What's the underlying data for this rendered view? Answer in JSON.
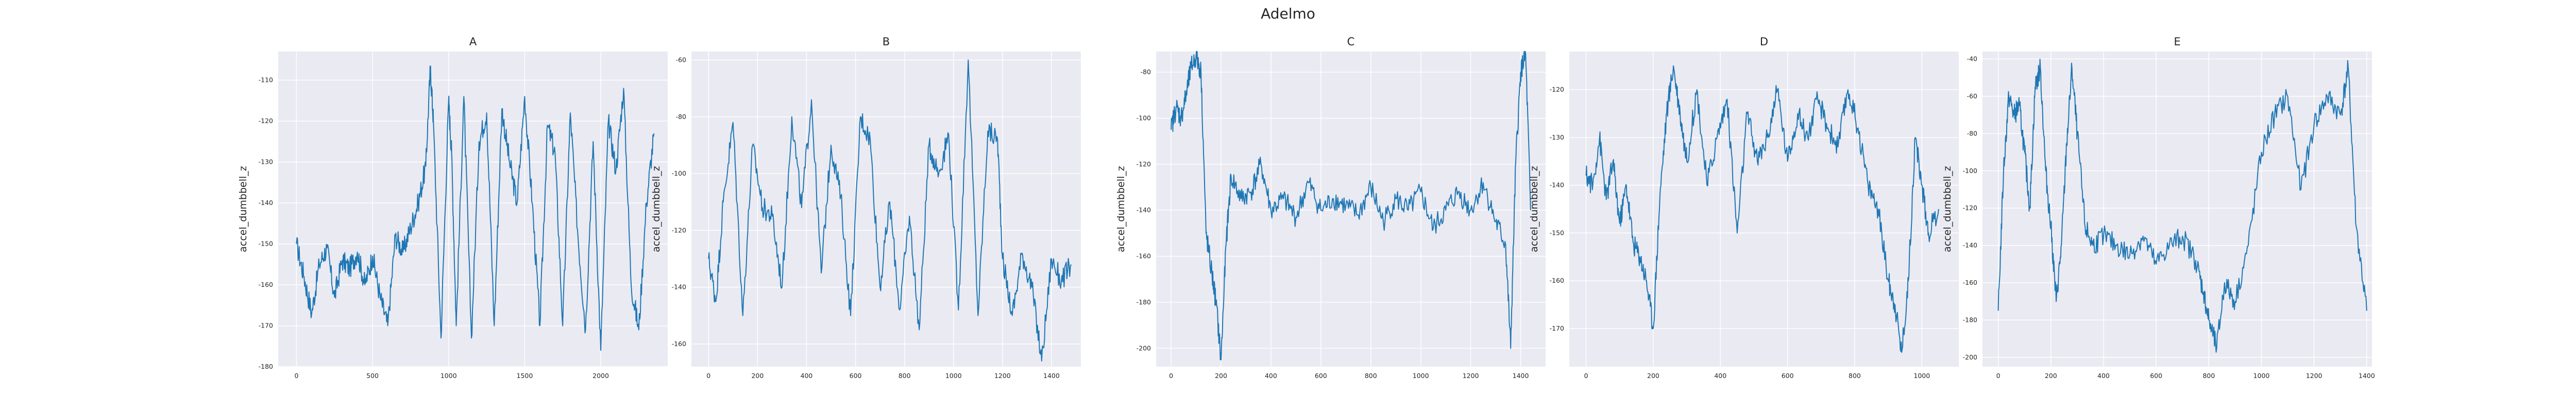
{
  "figure_title": "Adelmo",
  "colors": {
    "line": "#1f77b4",
    "panel_bg": "#eaeaf2",
    "grid": "#ffffff"
  },
  "chart_data": [
    {
      "type": "line",
      "title": "A",
      "ylabel": "accel_dumbbell_z",
      "xlabel": "",
      "grid": true,
      "xlim": [
        -120,
        2440
      ],
      "ylim": [
        -180,
        -103
      ],
      "xticks": [
        0,
        500,
        1000,
        1500,
        2000
      ],
      "yticks": [
        -180,
        -170,
        -160,
        -150,
        -140,
        -130,
        -120,
        -110
      ],
      "x": [
        0,
        50,
        100,
        150,
        200,
        250,
        300,
        350,
        400,
        450,
        500,
        550,
        600,
        650,
        700,
        750,
        800,
        850,
        880,
        900,
        950,
        1000,
        1020,
        1050,
        1100,
        1150,
        1200,
        1250,
        1300,
        1350,
        1400,
        1450,
        1500,
        1550,
        1600,
        1650,
        1700,
        1750,
        1800,
        1850,
        1900,
        1950,
        2000,
        2050,
        2100,
        2150,
        2200,
        2250,
        2300,
        2350
      ],
      "y": [
        -150,
        -158,
        -167,
        -155,
        -151,
        -163,
        -154,
        -156,
        -152,
        -160,
        -153,
        -163,
        -170,
        -148,
        -152,
        -146,
        -140,
        -131,
        -107,
        -120,
        -173,
        -115,
        -128,
        -170,
        -114,
        -173,
        -125,
        -118,
        -170,
        -117,
        -130,
        -140,
        -114,
        -140,
        -170,
        -121,
        -128,
        -170,
        -118,
        -148,
        -171,
        -125,
        -176,
        -120,
        -132,
        -112,
        -160,
        -171,
        -140,
        -123
      ]
    },
    {
      "type": "line",
      "title": "B",
      "ylabel": "accel_dumbbell_z",
      "xlabel": "",
      "grid": true,
      "xlim": [
        -70,
        1520
      ],
      "ylim": [
        -168,
        -57
      ],
      "xticks": [
        0,
        200,
        400,
        600,
        800,
        1000,
        1200,
        1400
      ],
      "yticks": [
        -160,
        -140,
        -120,
        -100,
        -80,
        -60
      ],
      "x": [
        0,
        30,
        60,
        100,
        140,
        180,
        220,
        260,
        300,
        340,
        380,
        420,
        460,
        500,
        540,
        580,
        620,
        660,
        700,
        740,
        780,
        820,
        860,
        900,
        940,
        980,
        1020,
        1060,
        1100,
        1140,
        1180,
        1200,
        1240,
        1280,
        1320,
        1360,
        1400,
        1440,
        1480
      ],
      "y": [
        -130,
        -145,
        -110,
        -82,
        -150,
        -90,
        -112,
        -115,
        -140,
        -80,
        -112,
        -74,
        -135,
        -90,
        -108,
        -150,
        -80,
        -88,
        -140,
        -110,
        -148,
        -115,
        -155,
        -90,
        -100,
        -86,
        -148,
        -60,
        -150,
        -85,
        -88,
        -130,
        -150,
        -128,
        -140,
        -166,
        -130,
        -138,
        -132
      ]
    },
    {
      "type": "line",
      "title": "C",
      "ylabel": "accel_dumbbell_z",
      "xlabel": "",
      "grid": true,
      "xlim": [
        -60,
        1500
      ],
      "ylim": [
        -208,
        -71
      ],
      "xticks": [
        0,
        200,
        400,
        600,
        800,
        1000,
        1200,
        1400
      ],
      "yticks": [
        -200,
        -180,
        -160,
        -140,
        -120,
        -100,
        -80
      ],
      "x": [
        0,
        20,
        40,
        60,
        80,
        100,
        120,
        140,
        160,
        180,
        200,
        220,
        240,
        280,
        320,
        360,
        400,
        450,
        500,
        550,
        600,
        650,
        700,
        750,
        800,
        850,
        900,
        950,
        1000,
        1050,
        1100,
        1150,
        1200,
        1250,
        1300,
        1340,
        1360,
        1380,
        1400,
        1420,
        1440
      ],
      "y": [
        -105,
        -95,
        -100,
        -90,
        -78,
        -73,
        -80,
        -150,
        -165,
        -180,
        -205,
        -155,
        -125,
        -135,
        -132,
        -120,
        -140,
        -135,
        -143,
        -128,
        -140,
        -135,
        -138,
        -142,
        -130,
        -145,
        -135,
        -140,
        -132,
        -148,
        -140,
        -132,
        -140,
        -128,
        -145,
        -155,
        -200,
        -120,
        -80,
        -72,
        -140
      ]
    },
    {
      "type": "line",
      "title": "D",
      "ylabel": "accel_dumbbell_z",
      "xlabel": "",
      "grid": true,
      "xlim": [
        -50,
        1110
      ],
      "ylim": [
        -178,
        -112
      ],
      "xticks": [
        0,
        200,
        400,
        600,
        800,
        1000
      ],
      "yticks": [
        -170,
        -160,
        -150,
        -140,
        -130,
        -120
      ],
      "x": [
        0,
        20,
        40,
        60,
        80,
        100,
        120,
        140,
        160,
        180,
        200,
        220,
        240,
        260,
        280,
        300,
        330,
        360,
        390,
        420,
        450,
        480,
        510,
        540,
        570,
        600,
        630,
        660,
        690,
        720,
        750,
        780,
        810,
        840,
        870,
        900,
        920,
        940,
        960,
        980,
        1000,
        1020,
        1050
      ],
      "y": [
        -138,
        -140,
        -130,
        -143,
        -135,
        -148,
        -140,
        -152,
        -155,
        -160,
        -170,
        -142,
        -125,
        -115,
        -125,
        -135,
        -120,
        -140,
        -130,
        -122,
        -150,
        -125,
        -135,
        -130,
        -120,
        -135,
        -125,
        -130,
        -122,
        -128,
        -132,
        -120,
        -128,
        -140,
        -145,
        -160,
        -165,
        -175,
        -160,
        -130,
        -140,
        -150,
        -145
      ]
    },
    {
      "type": "line",
      "title": "E",
      "ylabel": "accel_dumbbell_z",
      "xlabel": "",
      "grid": true,
      "xlim": [
        -60,
        1420
      ],
      "ylim": [
        -205,
        -36
      ],
      "xticks": [
        0,
        200,
        400,
        600,
        800,
        1000,
        1200,
        1400
      ],
      "yticks": [
        -200,
        -180,
        -160,
        -140,
        -120,
        -100,
        -80,
        -60,
        -40
      ],
      "x": [
        0,
        20,
        40,
        60,
        80,
        100,
        120,
        140,
        160,
        180,
        200,
        220,
        240,
        260,
        280,
        300,
        330,
        360,
        400,
        450,
        500,
        550,
        600,
        650,
        700,
        750,
        780,
        800,
        830,
        860,
        900,
        950,
        1000,
        1050,
        1100,
        1150,
        1200,
        1250,
        1300,
        1330,
        1360,
        1400
      ],
      "y": [
        -175,
        -100,
        -60,
        -70,
        -65,
        -90,
        -120,
        -55,
        -45,
        -100,
        -130,
        -170,
        -140,
        -85,
        -45,
        -80,
        -130,
        -140,
        -135,
        -140,
        -145,
        -135,
        -150,
        -140,
        -135,
        -148,
        -165,
        -180,
        -195,
        -160,
        -170,
        -140,
        -90,
        -70,
        -60,
        -110,
        -75,
        -60,
        -70,
        -45,
        -130,
        -175
      ]
    }
  ]
}
